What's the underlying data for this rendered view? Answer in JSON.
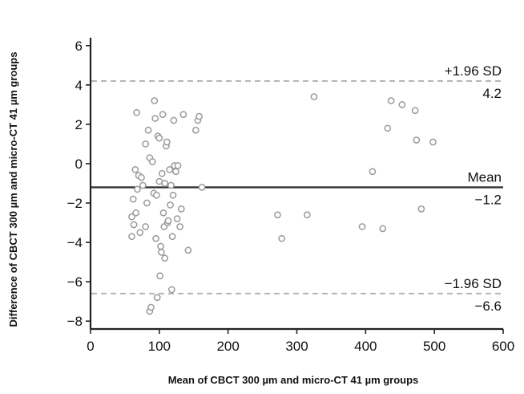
{
  "chart_data": {
    "type": "scatter",
    "title": "",
    "xlabel": "Mean of CBCT 300 µm and micro-CT 41 µm groups",
    "ylabel": "Difference of CBCT 300 µm and micro-CT 41 µm groups",
    "xlim": [
      0,
      600
    ],
    "ylim": [
      -8.4,
      6.4
    ],
    "x_ticks": [
      0,
      100,
      200,
      300,
      400,
      500,
      600
    ],
    "y_ticks": [
      -8,
      -6,
      -4,
      -2,
      0,
      2,
      4,
      6
    ],
    "grid": false,
    "legend": "none",
    "colors": {
      "points": "#9a9a9a",
      "mean_line": "#333333",
      "sd_lines": "#b5b5b5",
      "axes": "#222222"
    },
    "reference_lines": [
      {
        "id": "upper",
        "label": "+1.96 SD",
        "value_label": "4.2",
        "y": 4.2,
        "style": "dashed"
      },
      {
        "id": "mean",
        "label": "Mean",
        "value_label": "−1.2",
        "y": -1.2,
        "style": "solid"
      },
      {
        "id": "lower",
        "label": "−1.96 SD",
        "value_label": "−6.6",
        "y": -6.6,
        "style": "dashed"
      }
    ],
    "points": [
      {
        "x": 60,
        "y": -3.7
      },
      {
        "x": 60,
        "y": -2.7
      },
      {
        "x": 62,
        "y": -1.8
      },
      {
        "x": 63,
        "y": -3.1
      },
      {
        "x": 65,
        "y": -0.3
      },
      {
        "x": 66,
        "y": -2.5
      },
      {
        "x": 67,
        "y": 2.6
      },
      {
        "x": 68,
        "y": -1.3
      },
      {
        "x": 70,
        "y": -0.6
      },
      {
        "x": 72,
        "y": -3.5
      },
      {
        "x": 74,
        "y": -0.7
      },
      {
        "x": 76,
        "y": -1.1
      },
      {
        "x": 80,
        "y": 1.0
      },
      {
        "x": 80,
        "y": -3.2
      },
      {
        "x": 82,
        "y": -2.0
      },
      {
        "x": 84,
        "y": 1.7
      },
      {
        "x": 86,
        "y": 0.3
      },
      {
        "x": 86,
        "y": -7.5
      },
      {
        "x": 88,
        "y": -7.3
      },
      {
        "x": 90,
        "y": 0.1
      },
      {
        "x": 92,
        "y": -1.5
      },
      {
        "x": 93,
        "y": 3.2
      },
      {
        "x": 94,
        "y": 2.3
      },
      {
        "x": 95,
        "y": -3.8
      },
      {
        "x": 96,
        "y": -1.6
      },
      {
        "x": 97,
        "y": -6.8
      },
      {
        "x": 98,
        "y": 1.4
      },
      {
        "x": 100,
        "y": 1.3
      },
      {
        "x": 100,
        "y": -0.9
      },
      {
        "x": 101,
        "y": -5.7
      },
      {
        "x": 102,
        "y": -4.2
      },
      {
        "x": 103,
        "y": -4.5
      },
      {
        "x": 104,
        "y": -0.5
      },
      {
        "x": 105,
        "y": 2.5
      },
      {
        "x": 106,
        "y": -2.5
      },
      {
        "x": 107,
        "y": -3.2
      },
      {
        "x": 108,
        "y": -4.8
      },
      {
        "x": 108,
        "y": -1.0
      },
      {
        "x": 110,
        "y": 0.9
      },
      {
        "x": 111,
        "y": 1.1
      },
      {
        "x": 112,
        "y": -3.0
      },
      {
        "x": 113,
        "y": -2.9
      },
      {
        "x": 115,
        "y": -0.3
      },
      {
        "x": 116,
        "y": -2.1
      },
      {
        "x": 117,
        "y": -1.1
      },
      {
        "x": 118,
        "y": -6.4
      },
      {
        "x": 119,
        "y": -3.7
      },
      {
        "x": 120,
        "y": -1.6
      },
      {
        "x": 121,
        "y": 2.2
      },
      {
        "x": 122,
        "y": -0.1
      },
      {
        "x": 124,
        "y": -0.4
      },
      {
        "x": 126,
        "y": -2.8
      },
      {
        "x": 127,
        "y": -0.1
      },
      {
        "x": 130,
        "y": -3.2
      },
      {
        "x": 132,
        "y": -2.3
      },
      {
        "x": 135,
        "y": 2.5
      },
      {
        "x": 142,
        "y": -4.4
      },
      {
        "x": 153,
        "y": 1.7
      },
      {
        "x": 156,
        "y": 2.2
      },
      {
        "x": 158,
        "y": 2.4
      },
      {
        "x": 162,
        "y": -1.2
      },
      {
        "x": 272,
        "y": -2.6
      },
      {
        "x": 278,
        "y": -3.8
      },
      {
        "x": 315,
        "y": -2.6
      },
      {
        "x": 325,
        "y": 3.4
      },
      {
        "x": 395,
        "y": -3.2
      },
      {
        "x": 410,
        "y": -0.4
      },
      {
        "x": 425,
        "y": -3.3
      },
      {
        "x": 432,
        "y": 1.8
      },
      {
        "x": 437,
        "y": 3.2
      },
      {
        "x": 453,
        "y": 3.0
      },
      {
        "x": 472,
        "y": 2.7
      },
      {
        "x": 474,
        "y": 1.2
      },
      {
        "x": 481,
        "y": -2.3
      },
      {
        "x": 498,
        "y": 1.1
      }
    ]
  }
}
